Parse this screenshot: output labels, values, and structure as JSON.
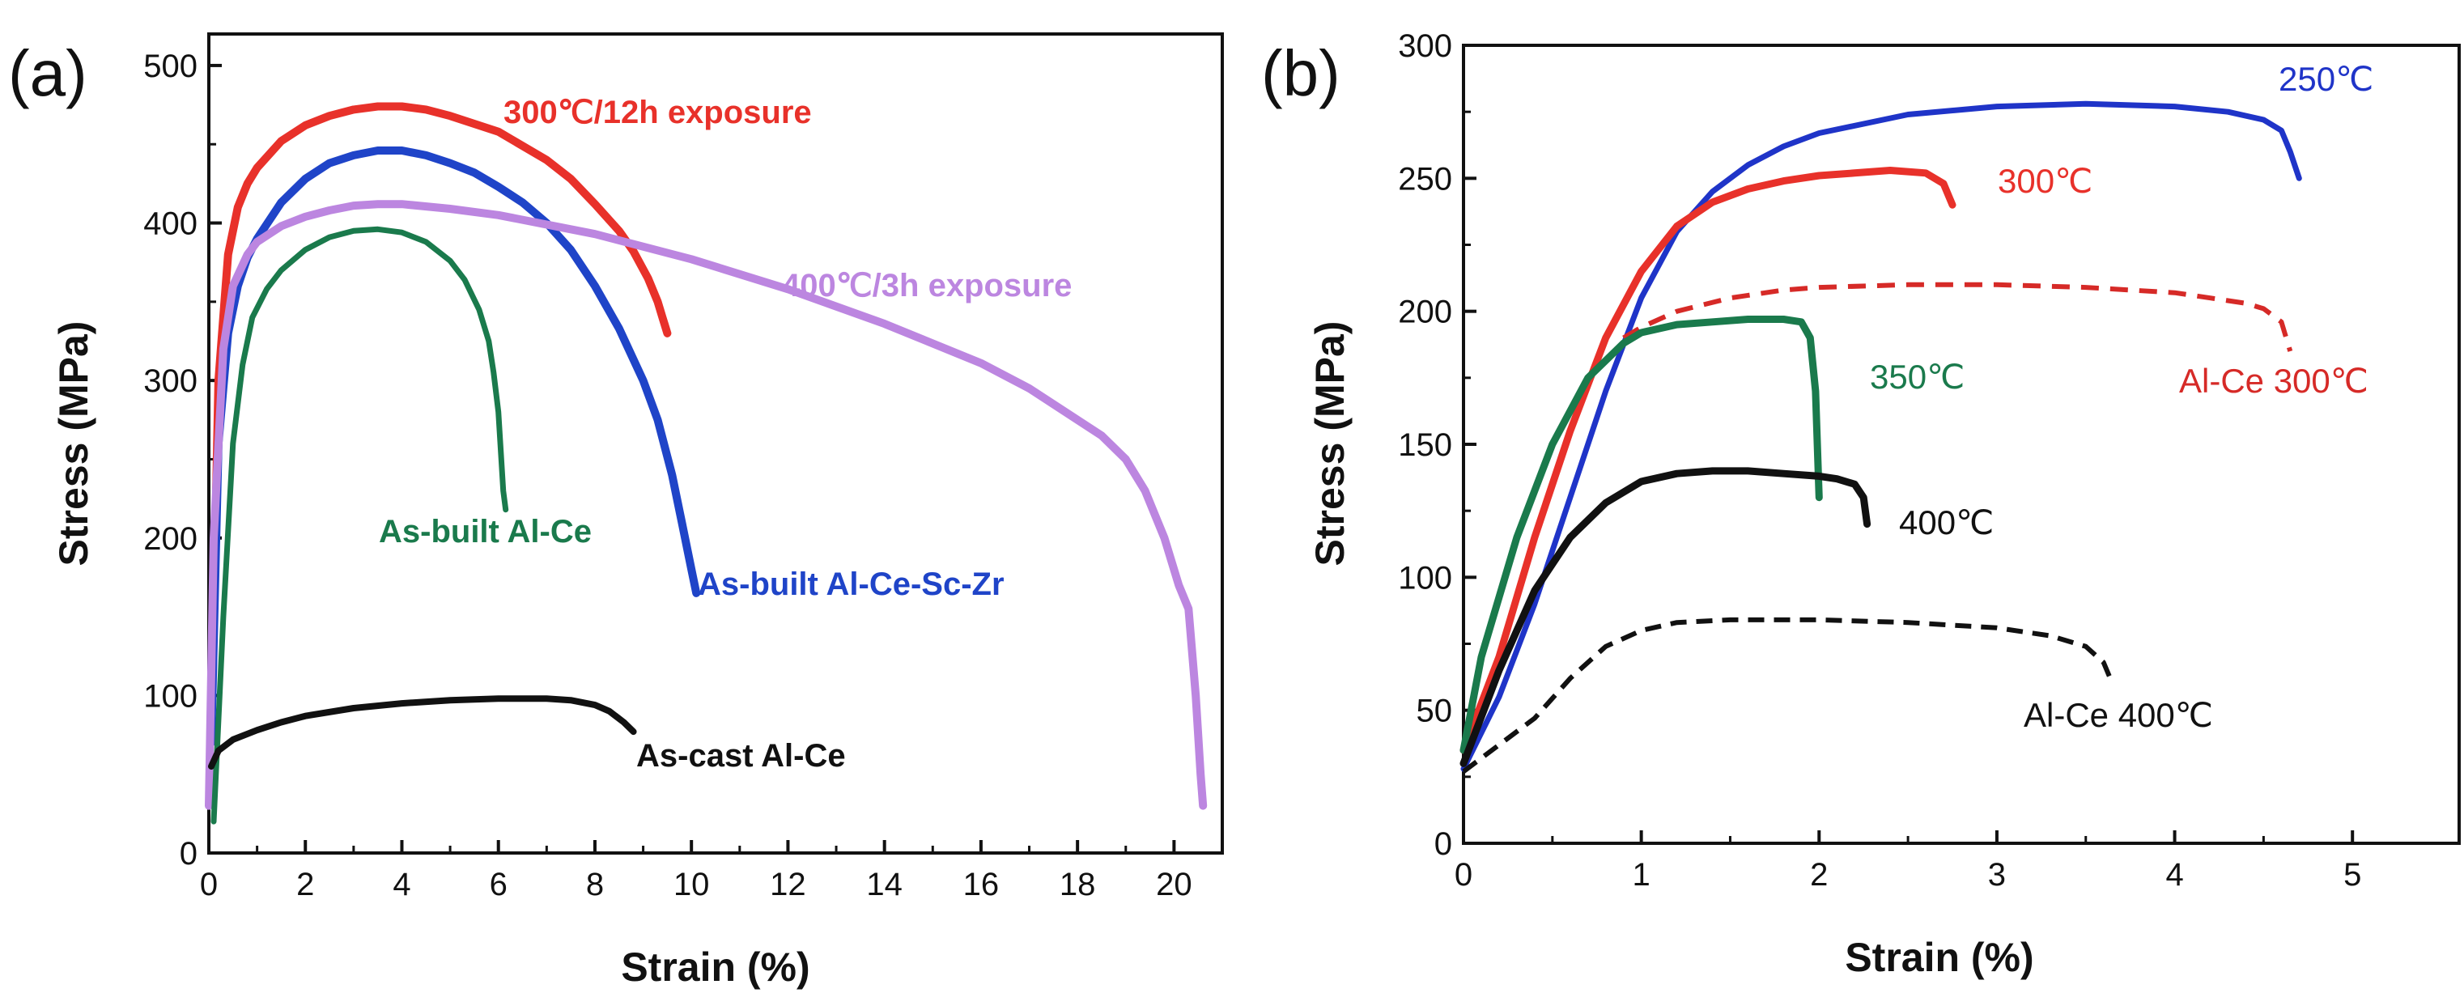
{
  "chart_data": [
    {
      "type": "line",
      "panel_label": "(a)",
      "xlabel": "Strain (%)",
      "ylabel": "Stress (MPa)",
      "xlim": [
        0,
        21
      ],
      "ylim": [
        0,
        520
      ],
      "xticks": [
        0,
        2,
        4,
        6,
        8,
        10,
        12,
        14,
        16,
        18,
        20
      ],
      "yticks": [
        0,
        100,
        200,
        300,
        400,
        500
      ],
      "series": [
        {
          "name": "300℃/12h exposure",
          "color": "#e8312a",
          "dash": "none",
          "width": 10,
          "x": [
            0.05,
            0.2,
            0.4,
            0.6,
            0.8,
            1.0,
            1.5,
            2.0,
            2.5,
            3.0,
            3.5,
            4.0,
            4.5,
            5.0,
            6.0,
            7.0,
            7.5,
            8.0,
            8.5,
            8.8,
            9.1,
            9.3,
            9.4,
            9.45,
            9.5
          ],
          "y": [
            80,
            300,
            380,
            410,
            425,
            435,
            452,
            462,
            468,
            472,
            474,
            474,
            472,
            468,
            458,
            440,
            428,
            412,
            395,
            382,
            365,
            350,
            340,
            335,
            330
          ]
        },
        {
          "name": "As-built Al-Ce-Sc-Zr",
          "color": "#1f44c8",
          "dash": "none",
          "width": 10,
          "x": [
            0.05,
            0.2,
            0.4,
            0.6,
            0.8,
            1.0,
            1.5,
            2.0,
            2.5,
            3.0,
            3.5,
            4.0,
            4.5,
            5.0,
            5.5,
            6.0,
            6.5,
            7.0,
            7.5,
            8.0,
            8.5,
            9.0,
            9.3,
            9.6,
            9.8,
            10.0,
            10.1
          ],
          "y": [
            70,
            260,
            330,
            360,
            378,
            390,
            413,
            428,
            438,
            443,
            446,
            446,
            443,
            438,
            432,
            423,
            413,
            400,
            383,
            360,
            333,
            300,
            275,
            240,
            210,
            180,
            165
          ]
        },
        {
          "name": "400℃/3h exposure",
          "color": "#bc86e0",
          "dash": "none",
          "width": 10,
          "x": [
            0.0,
            0.1,
            0.3,
            0.5,
            0.8,
            1.0,
            1.5,
            2.0,
            2.5,
            3.0,
            3.5,
            4.0,
            5.0,
            6.0,
            8.0,
            10.0,
            12.0,
            14.0,
            16.0,
            17.0,
            18.0,
            18.5,
            19.0,
            19.4,
            19.8,
            20.1,
            20.3,
            20.45,
            20.55,
            20.6
          ],
          "y": [
            30,
            200,
            320,
            360,
            380,
            388,
            398,
            404,
            408,
            411,
            412,
            412,
            409,
            405,
            393,
            377,
            358,
            336,
            311,
            295,
            275,
            265,
            250,
            230,
            200,
            170,
            155,
            100,
            50,
            30
          ]
        },
        {
          "name": "As-built Al-Ce",
          "color": "#1a7a4c",
          "dash": "none",
          "width": 7,
          "x": [
            0.1,
            0.3,
            0.5,
            0.7,
            0.9,
            1.2,
            1.5,
            2.0,
            2.5,
            3.0,
            3.5,
            4.0,
            4.5,
            5.0,
            5.3,
            5.6,
            5.8,
            5.9,
            6.0,
            6.05,
            6.1,
            6.15
          ],
          "y": [
            20,
            150,
            260,
            310,
            340,
            358,
            370,
            383,
            391,
            395,
            396,
            394,
            388,
            376,
            364,
            345,
            325,
            305,
            280,
            255,
            230,
            218
          ]
        },
        {
          "name": "As-cast Al-Ce",
          "color": "#111111",
          "dash": "none",
          "width": 8,
          "x": [
            0.05,
            0.2,
            0.5,
            1.0,
            1.5,
            2.0,
            3.0,
            4.0,
            5.0,
            6.0,
            7.0,
            7.5,
            8.0,
            8.3,
            8.6,
            8.8
          ],
          "y": [
            55,
            65,
            72,
            78,
            83,
            87,
            92,
            95,
            97,
            98,
            98,
            97,
            94,
            90,
            83,
            77
          ]
        }
      ],
      "annotations": [
        {
          "text": "300℃/12h exposure",
          "color": "#e8312a"
        },
        {
          "text": "400℃/3h exposure",
          "color": "#bc86e0"
        },
        {
          "text": "As-built Al-Ce",
          "color": "#1a7a4c"
        },
        {
          "text": "As-built Al-Ce-Sc-Zr",
          "color": "#1f44c8"
        },
        {
          "text": "As-cast Al-Ce",
          "color": "#111111"
        }
      ]
    },
    {
      "type": "line",
      "panel_label": "(b)",
      "xlabel": "Strain (%)",
      "ylabel": "Stress (MPa)",
      "xlim": [
        0,
        5.6
      ],
      "ylim": [
        0,
        300
      ],
      "xticks": [
        0,
        1,
        2,
        3,
        4,
        5
      ],
      "yticks": [
        0,
        50,
        100,
        150,
        200,
        250,
        300
      ],
      "series": [
        {
          "name": "250℃",
          "color": "#1f34c8",
          "dash": "none",
          "width": 7,
          "x": [
            0.0,
            0.2,
            0.4,
            0.6,
            0.8,
            1.0,
            1.2,
            1.4,
            1.6,
            1.8,
            2.0,
            2.5,
            3.0,
            3.5,
            4.0,
            4.3,
            4.5,
            4.6,
            4.65,
            4.7
          ],
          "y": [
            28,
            55,
            90,
            130,
            170,
            205,
            230,
            245,
            255,
            262,
            267,
            274,
            277,
            278,
            277,
            275,
            272,
            268,
            260,
            250
          ]
        },
        {
          "name": "300℃",
          "color": "#e8312a",
          "dash": "none",
          "width": 9,
          "x": [
            0.0,
            0.2,
            0.4,
            0.6,
            0.8,
            1.0,
            1.2,
            1.4,
            1.6,
            1.8,
            2.0,
            2.2,
            2.4,
            2.6,
            2.7,
            2.75
          ],
          "y": [
            35,
            70,
            115,
            155,
            190,
            215,
            232,
            241,
            246,
            249,
            251,
            252,
            253,
            252,
            248,
            240
          ]
        },
        {
          "name": "Al-Ce 300℃",
          "color": "#d62a27",
          "dash": "22 14",
          "width": 6,
          "x": [
            0.9,
            1.0,
            1.2,
            1.5,
            1.8,
            2.0,
            2.5,
            3.0,
            3.5,
            4.0,
            4.2,
            4.4,
            4.5,
            4.6,
            4.65
          ],
          "y": [
            190,
            194,
            200,
            205,
            208,
            209,
            210,
            210,
            209,
            207,
            205,
            203,
            201,
            196,
            185
          ]
        },
        {
          "name": "350℃",
          "color": "#1a7a4c",
          "dash": "none",
          "width": 9,
          "x": [
            0.0,
            0.1,
            0.3,
            0.5,
            0.7,
            0.9,
            1.0,
            1.2,
            1.4,
            1.6,
            1.8,
            1.9,
            1.95,
            1.98,
            2.0
          ],
          "y": [
            35,
            70,
            115,
            150,
            175,
            188,
            192,
            195,
            196,
            197,
            197,
            196,
            190,
            170,
            130
          ]
        },
        {
          "name": "400℃",
          "color": "#111111",
          "dash": "none",
          "width": 9,
          "x": [
            0.0,
            0.2,
            0.4,
            0.6,
            0.8,
            1.0,
            1.2,
            1.4,
            1.6,
            1.8,
            2.0,
            2.1,
            2.2,
            2.25,
            2.27
          ],
          "y": [
            30,
            65,
            95,
            115,
            128,
            136,
            139,
            140,
            140,
            139,
            138,
            137,
            135,
            130,
            120
          ]
        },
        {
          "name": "Al-Ce 400℃",
          "color": "#111111",
          "dash": "20 12",
          "width": 6,
          "x": [
            0.0,
            0.2,
            0.4,
            0.6,
            0.8,
            1.0,
            1.2,
            1.5,
            2.0,
            2.5,
            3.0,
            3.3,
            3.5,
            3.6,
            3.65
          ],
          "y": [
            27,
            37,
            47,
            62,
            74,
            80,
            83,
            84,
            84,
            83,
            81,
            78,
            74,
            68,
            60
          ]
        }
      ],
      "annotations": [
        {
          "text": "250℃",
          "color": "#1f34c8"
        },
        {
          "text": "300℃",
          "color": "#e8312a"
        },
        {
          "text": "350℃",
          "color": "#1a7a4c"
        },
        {
          "text": "Al-Ce 300℃",
          "color": "#d62a27"
        },
        {
          "text": "400℃",
          "color": "#111111"
        },
        {
          "text": "Al-Ce 400℃",
          "color": "#111111"
        }
      ]
    }
  ]
}
